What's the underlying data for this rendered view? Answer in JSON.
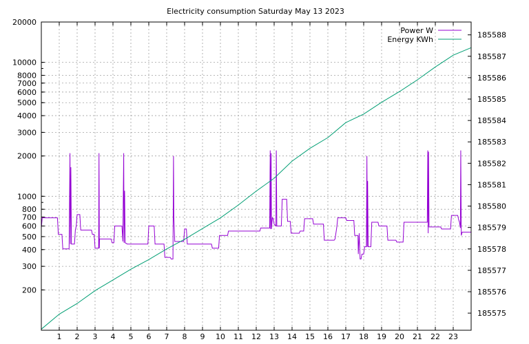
{
  "chart_data": {
    "type": "line",
    "title": "Electricity consumption Saturday May 13 2023",
    "xlabel": "",
    "ylabel": "",
    "y2label": "",
    "grid": true,
    "legend_position": "top-right",
    "xlim": [
      0,
      24
    ],
    "x_ticks": [
      1,
      2,
      3,
      4,
      5,
      6,
      7,
      8,
      9,
      10,
      11,
      12,
      13,
      14,
      15,
      16,
      17,
      18,
      19,
      20,
      21,
      22,
      23
    ],
    "y_scale": "log",
    "ylim": [
      100,
      20000
    ],
    "y_ticks": [
      {
        "value": 200,
        "label": "200"
      },
      {
        "value": 300,
        "label": "300"
      },
      {
        "value": 400,
        "label": "400"
      },
      {
        "value": 500,
        "label": "500"
      },
      {
        "value": 600,
        "label": "600"
      },
      {
        "value": 700,
        "label": "700"
      },
      {
        "value": 800,
        "label": "800"
      },
      {
        "value": 1000,
        "label": "1000"
      },
      {
        "value": 2000,
        "label": "2000"
      },
      {
        "value": 3000,
        "label": "3000"
      },
      {
        "value": 4000,
        "label": "4000"
      },
      {
        "value": 5000,
        "label": "5000"
      },
      {
        "value": 6000,
        "label": "6000"
      },
      {
        "value": 7000,
        "label": "7000"
      },
      {
        "value": 8000,
        "label": "8000"
      },
      {
        "value": 10000,
        "label": "10000"
      },
      {
        "value": 20000,
        "label": "20000"
      }
    ],
    "y2lim": [
      185574.2,
      185588.6
    ],
    "y2_ticks": [
      185575,
      185576,
      185577,
      185578,
      185579,
      185580,
      185581,
      185582,
      185583,
      185584,
      185585,
      185586,
      185587,
      185588
    ],
    "series": [
      {
        "name": "Power W",
        "axis": "y",
        "color": "#9400d3",
        "step": true,
        "points": [
          [
            0.0,
            580
          ],
          [
            0.05,
            690
          ],
          [
            0.9,
            690
          ],
          [
            0.95,
            520
          ],
          [
            1.15,
            520
          ],
          [
            1.2,
            405
          ],
          [
            1.55,
            405
          ],
          [
            1.6,
            2100
          ],
          [
            1.62,
            440
          ],
          [
            1.65,
            1650
          ],
          [
            1.68,
            440
          ],
          [
            1.85,
            440
          ],
          [
            1.9,
            560
          ],
          [
            1.95,
            600
          ],
          [
            2.0,
            730
          ],
          [
            2.15,
            730
          ],
          [
            2.2,
            560
          ],
          [
            2.8,
            560
          ],
          [
            2.85,
            520
          ],
          [
            2.95,
            520
          ],
          [
            3.0,
            410
          ],
          [
            3.2,
            410
          ],
          [
            3.22,
            2100
          ],
          [
            3.24,
            410
          ],
          [
            3.25,
            480
          ],
          [
            3.9,
            480
          ],
          [
            3.95,
            450
          ],
          [
            4.05,
            450
          ],
          [
            4.1,
            600
          ],
          [
            4.5,
            600
          ],
          [
            4.55,
            460
          ],
          [
            4.6,
            2100
          ],
          [
            4.62,
            450
          ],
          [
            4.65,
            1100
          ],
          [
            4.68,
            450
          ],
          [
            4.8,
            440
          ],
          [
            5.95,
            440
          ],
          [
            6.0,
            600
          ],
          [
            6.3,
            600
          ],
          [
            6.35,
            440
          ],
          [
            6.85,
            440
          ],
          [
            6.9,
            350
          ],
          [
            7.2,
            350
          ],
          [
            7.25,
            340
          ],
          [
            7.35,
            340
          ],
          [
            7.38,
            2000
          ],
          [
            7.4,
            700
          ],
          [
            7.45,
            460
          ],
          [
            7.95,
            460
          ],
          [
            8.0,
            570
          ],
          [
            8.1,
            570
          ],
          [
            8.15,
            440
          ],
          [
            9.5,
            440
          ],
          [
            9.55,
            410
          ],
          [
            9.9,
            410
          ],
          [
            9.95,
            510
          ],
          [
            10.4,
            510
          ],
          [
            10.45,
            550
          ],
          [
            12.2,
            550
          ],
          [
            12.25,
            580
          ],
          [
            12.75,
            580
          ],
          [
            12.78,
            2200
          ],
          [
            12.8,
            570
          ],
          [
            12.83,
            2100
          ],
          [
            12.85,
            570
          ],
          [
            12.9,
            690
          ],
          [
            12.95,
            680
          ],
          [
            13.0,
            620
          ],
          [
            13.1,
            600
          ],
          [
            13.12,
            2200
          ],
          [
            13.15,
            600
          ],
          [
            13.4,
            600
          ],
          [
            13.45,
            950
          ],
          [
            13.7,
            950
          ],
          [
            13.75,
            650
          ],
          [
            13.9,
            650
          ],
          [
            13.95,
            530
          ],
          [
            14.4,
            530
          ],
          [
            14.45,
            550
          ],
          [
            14.65,
            550
          ],
          [
            14.7,
            680
          ],
          [
            15.15,
            680
          ],
          [
            15.2,
            620
          ],
          [
            15.75,
            620
          ],
          [
            15.8,
            470
          ],
          [
            16.35,
            470
          ],
          [
            16.4,
            480
          ],
          [
            16.5,
            590
          ],
          [
            16.55,
            690
          ],
          [
            17.0,
            690
          ],
          [
            17.05,
            660
          ],
          [
            17.45,
            660
          ],
          [
            17.5,
            510
          ],
          [
            17.68,
            510
          ],
          [
            17.7,
            370
          ],
          [
            17.75,
            530
          ],
          [
            17.8,
            340
          ],
          [
            17.85,
            340
          ],
          [
            17.9,
            370
          ],
          [
            18.0,
            370
          ],
          [
            18.05,
            420
          ],
          [
            18.15,
            420
          ],
          [
            18.18,
            2000
          ],
          [
            18.2,
            420
          ],
          [
            18.22,
            1300
          ],
          [
            18.25,
            420
          ],
          [
            18.4,
            420
          ],
          [
            18.45,
            640
          ],
          [
            18.8,
            640
          ],
          [
            18.85,
            600
          ],
          [
            19.3,
            600
          ],
          [
            19.35,
            470
          ],
          [
            19.8,
            470
          ],
          [
            19.85,
            455
          ],
          [
            20.2,
            455
          ],
          [
            20.25,
            640
          ],
          [
            21.55,
            640
          ],
          [
            21.58,
            2200
          ],
          [
            21.6,
            530
          ],
          [
            21.62,
            2150
          ],
          [
            21.65,
            590
          ],
          [
            22.3,
            590
          ],
          [
            22.35,
            570
          ],
          [
            22.85,
            570
          ],
          [
            22.9,
            720
          ],
          [
            23.25,
            720
          ],
          [
            23.3,
            670
          ],
          [
            23.35,
            640
          ],
          [
            23.4,
            580
          ],
          [
            23.42,
            2200
          ],
          [
            23.45,
            510
          ],
          [
            23.5,
            540
          ],
          [
            24.0,
            540
          ]
        ]
      },
      {
        "name": "Energy KWh",
        "axis": "y2",
        "color": "#009e73",
        "step": false,
        "points": [
          [
            0.0,
            185574.25
          ],
          [
            1.0,
            185574.95
          ],
          [
            2.0,
            185575.45
          ],
          [
            3.0,
            185576.05
          ],
          [
            4.0,
            185576.55
          ],
          [
            5.0,
            185577.05
          ],
          [
            6.0,
            185577.5
          ],
          [
            7.0,
            185578.0
          ],
          [
            8.0,
            185578.45
          ],
          [
            9.0,
            185578.95
          ],
          [
            10.0,
            185579.45
          ],
          [
            11.0,
            185580.05
          ],
          [
            12.0,
            185580.7
          ],
          [
            13.0,
            185581.3
          ],
          [
            14.0,
            185582.1
          ],
          [
            15.0,
            185582.7
          ],
          [
            16.0,
            185583.2
          ],
          [
            17.0,
            185583.9
          ],
          [
            18.0,
            185584.3
          ],
          [
            19.0,
            185584.85
          ],
          [
            20.0,
            185585.35
          ],
          [
            21.0,
            185585.9
          ],
          [
            22.0,
            185586.5
          ],
          [
            23.0,
            185587.05
          ],
          [
            24.0,
            185587.4
          ]
        ]
      }
    ]
  }
}
